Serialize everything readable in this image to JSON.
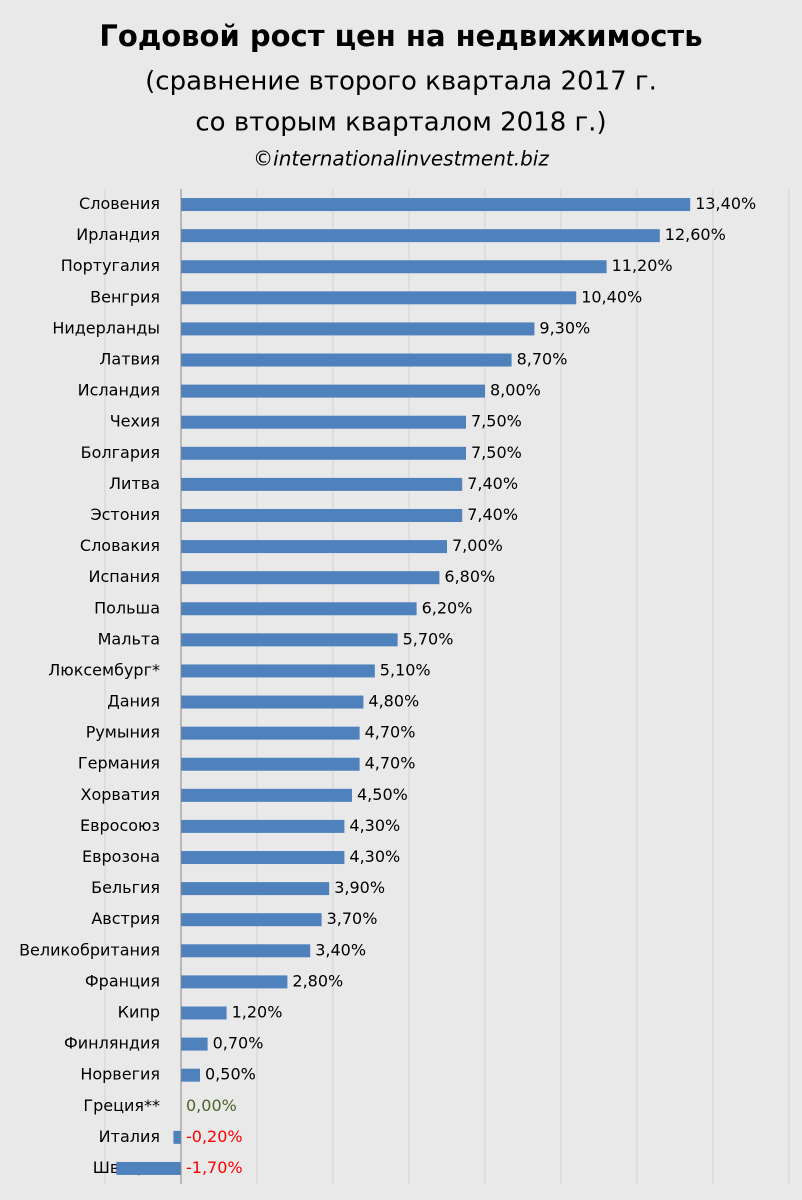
{
  "chart_data": {
    "type": "barh",
    "title": "Годовой рост цен на недвижимость",
    "subtitle": [
      "(сравнение второго квартала 2017 г.",
      "со вторым кварталом 2018 г.)"
    ],
    "source": "©internationalinvestment.biz",
    "categories": [
      "Словения",
      "Ирландия",
      "Португалия",
      "Венгрия",
      "Нидерланды",
      "Латвия",
      "Исландия",
      "Чехия",
      "Болгария",
      "Литва",
      "Эстония",
      "Словакия",
      "Испания",
      "Польша",
      "Мальта",
      "Люксембург*",
      "Дания",
      "Румыния",
      "Германия",
      "Хорватия",
      "Евросоюз",
      "Еврозона",
      "Бельгия",
      "Австрия",
      "Великобритания",
      "Франция",
      "Кипр",
      "Финляндия",
      "Норвегия",
      "Греция**",
      "Италия",
      "Швеция"
    ],
    "values": [
      13.4,
      12.6,
      11.2,
      10.4,
      9.3,
      8.7,
      8.0,
      7.5,
      7.5,
      7.4,
      7.4,
      7.0,
      6.8,
      6.2,
      5.7,
      5.1,
      4.8,
      4.7,
      4.7,
      4.5,
      4.3,
      4.3,
      3.9,
      3.7,
      3.4,
      2.8,
      1.2,
      0.7,
      0.5,
      0.0,
      -0.2,
      -1.7
    ],
    "value_labels": [
      "13,40%",
      "12,60%",
      "11,20%",
      "10,40%",
      "9,30%",
      "8,70%",
      "8,00%",
      "7,50%",
      "7,50%",
      "7,40%",
      "7,40%",
      "7,00%",
      "6,80%",
      "6,20%",
      "5,70%",
      "5,10%",
      "4,80%",
      "4,70%",
      "4,70%",
      "4,50%",
      "4,30%",
      "4,30%",
      "3,90%",
      "3,70%",
      "3,40%",
      "2,80%",
      "1,20%",
      "0,70%",
      "0,50%",
      "0,00%",
      "-0,20%",
      "-1,70%"
    ],
    "value_label_colors": [
      "#000",
      "#000",
      "#000",
      "#000",
      "#000",
      "#000",
      "#000",
      "#000",
      "#000",
      "#000",
      "#000",
      "#000",
      "#000",
      "#000",
      "#000",
      "#000",
      "#000",
      "#000",
      "#000",
      "#000",
      "#000",
      "#000",
      "#000",
      "#000",
      "#000",
      "#000",
      "#000",
      "#000",
      "#000",
      "#4f6228",
      "#ff0000",
      "#ff0000"
    ],
    "color": "#4f81bd",
    "xlim": [
      -2,
      16
    ],
    "xticks": [
      -2,
      0,
      2,
      4,
      6,
      8,
      10,
      12,
      14,
      16
    ],
    "tick_labels": false,
    "grid": true
  }
}
